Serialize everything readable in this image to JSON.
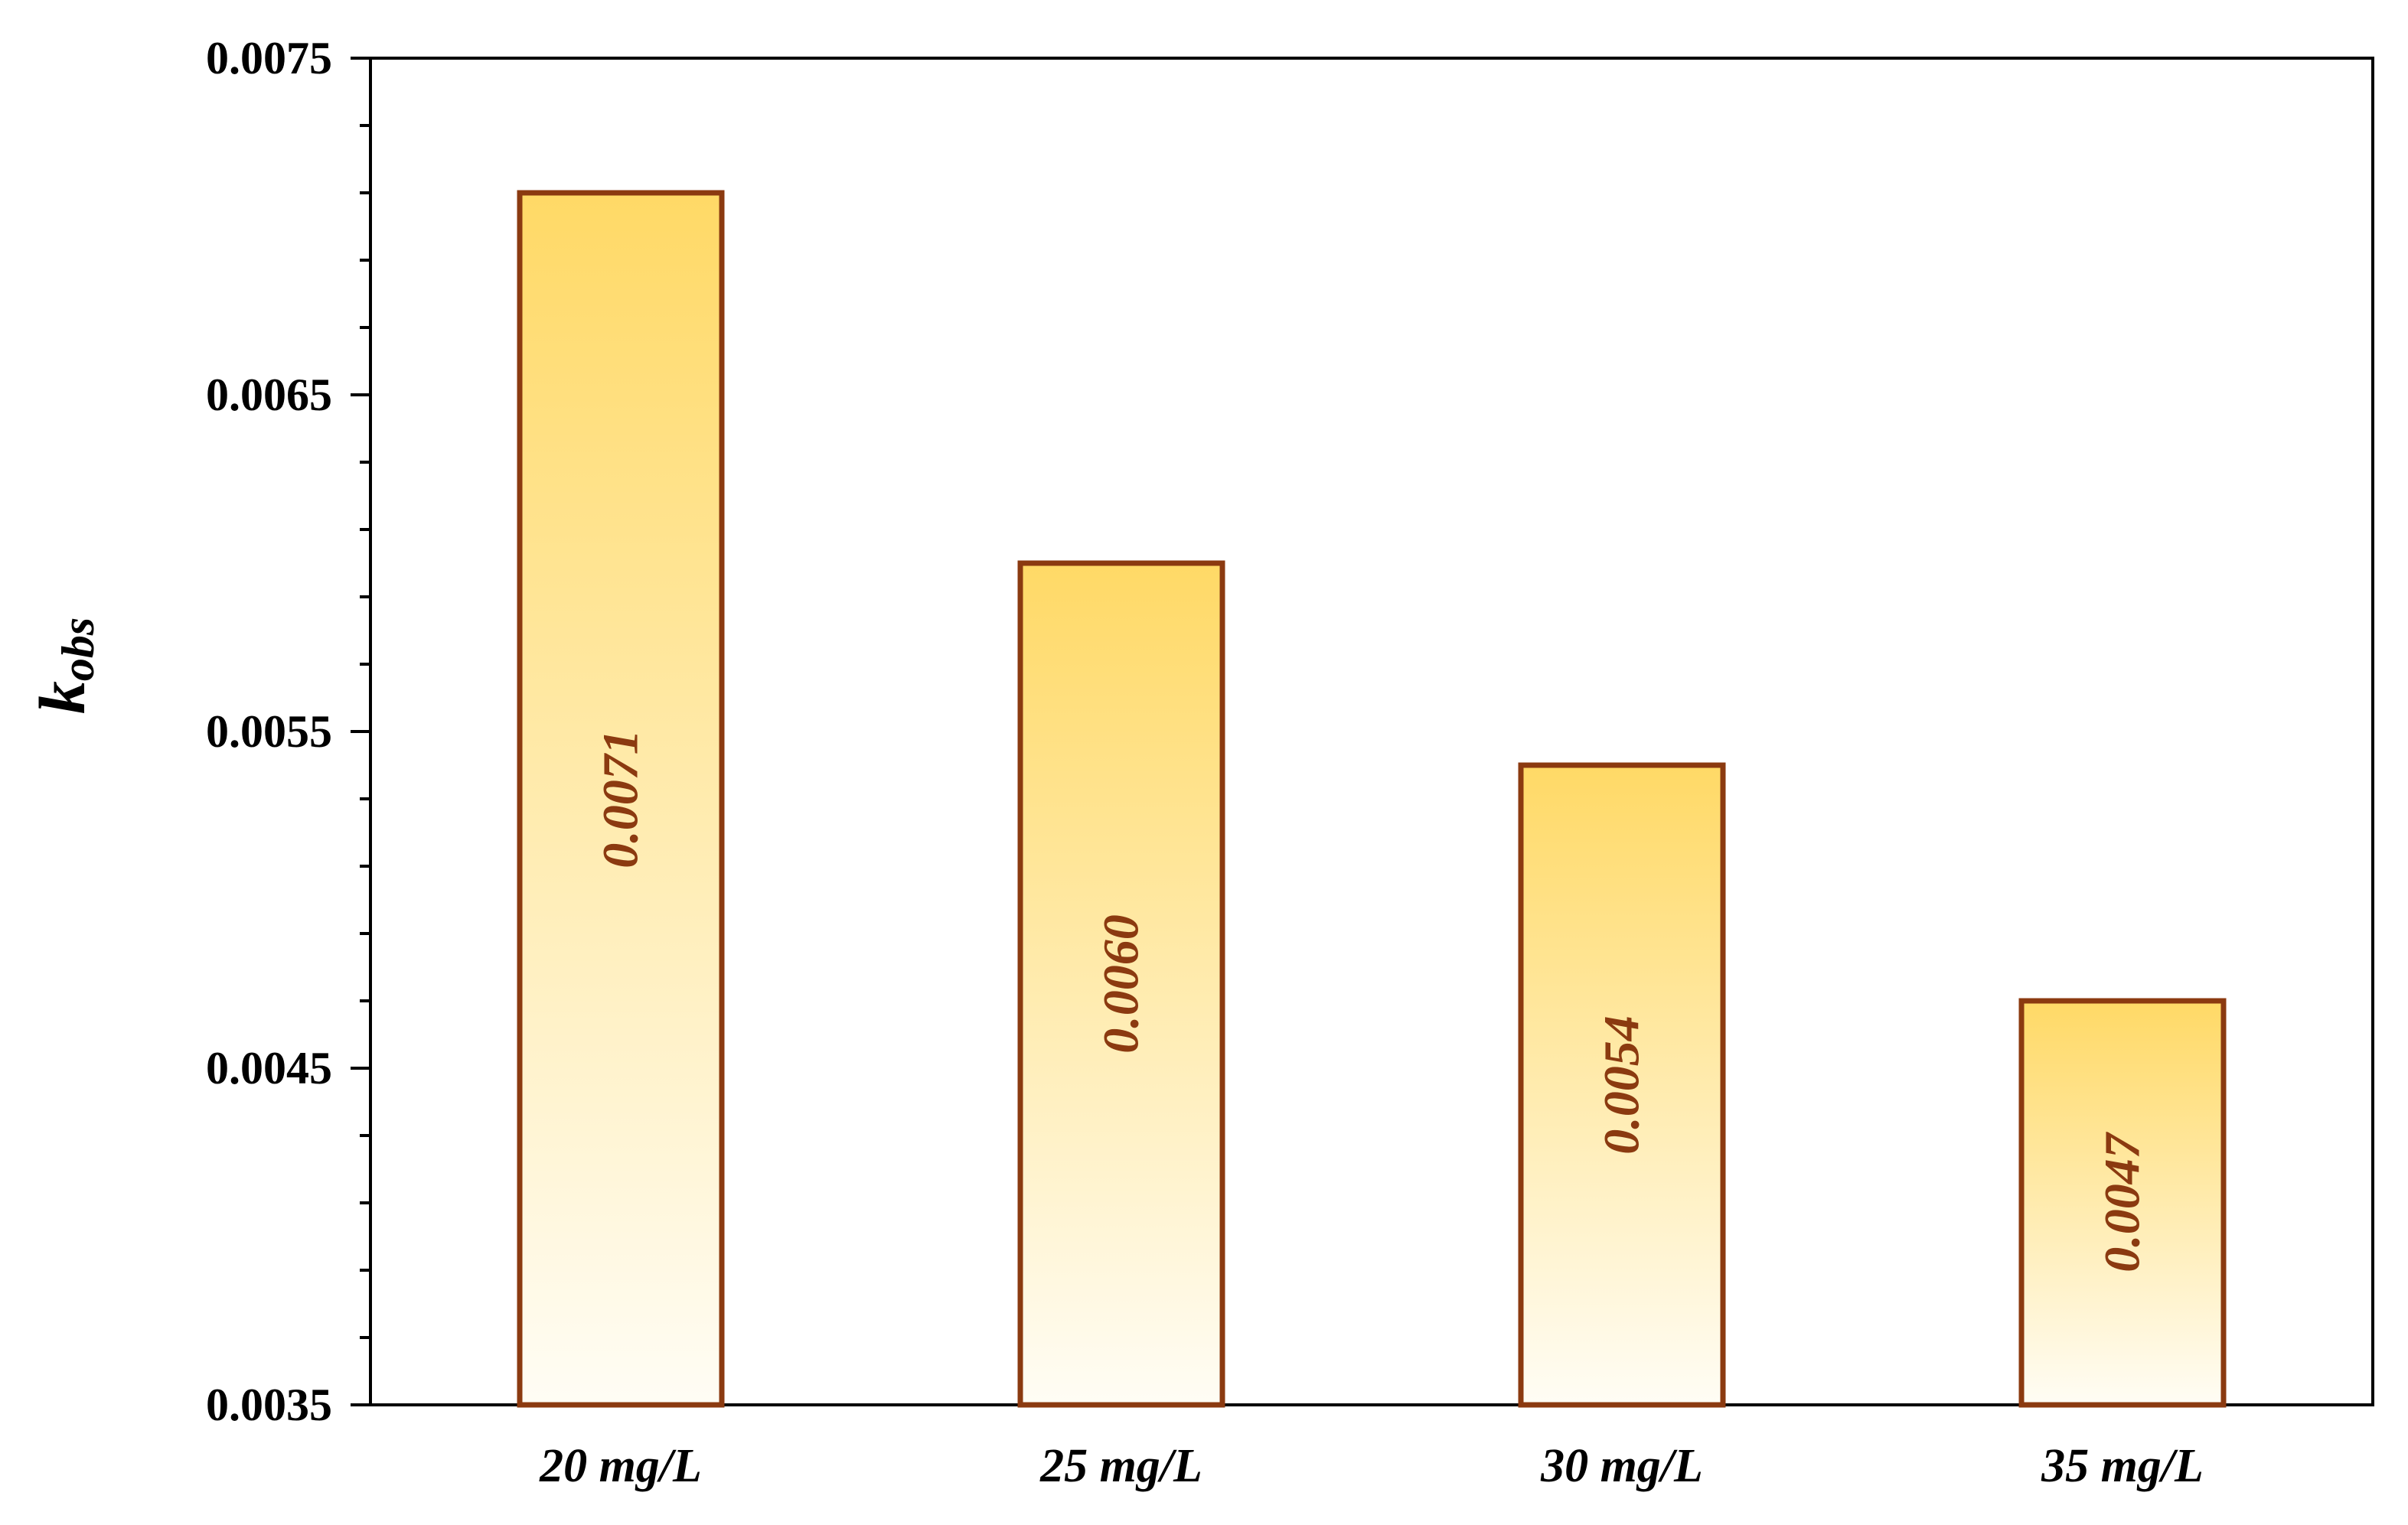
{
  "chart_data": {
    "type": "bar",
    "categories": [
      "20 mg/L",
      "25 mg/L",
      "30 mg/L",
      "35 mg/L"
    ],
    "values": [
      0.0071,
      0.006,
      0.0054,
      0.0047
    ],
    "data_labels": [
      "0.0071",
      "0.0060",
      "0.0054",
      "0.0047"
    ],
    "title": "",
    "xlabel": "",
    "ylabel": "kobs",
    "ylabel_main": "k",
    "ylabel_sub": "obs",
    "ylim": [
      0.0035,
      0.0075
    ],
    "yticks": [
      0.0035,
      0.0045,
      0.0055,
      0.0065,
      0.0075
    ],
    "ytick_labels": [
      "0.0035",
      "0.0045",
      "0.0055",
      "0.0065",
      "0.0075"
    ],
    "minor_tick_step": 0.0002,
    "grid": false,
    "legend": "none",
    "colors": {
      "bar_fill_top": "#FFD966",
      "bar_fill_bottom": "#FFFDF5",
      "bar_stroke": "#8B3A10",
      "data_label": "#8B3A10",
      "axis": "#000000"
    }
  }
}
